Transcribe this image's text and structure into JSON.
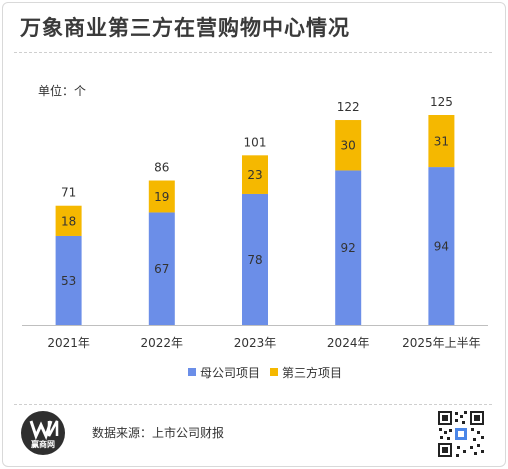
{
  "title": "万象商业第三方在营购物中心情况",
  "unit_label": "单位：个",
  "source_label": "数据来源：上市公司财报",
  "logo": {
    "text": "赢商网",
    "icon": "winshang-logo-icon"
  },
  "qr_icon": "qr-code-icon",
  "colors": {
    "parent": "#6b8ee8",
    "third_party": "#f5b800"
  },
  "chart_data": {
    "type": "bar",
    "stacked": true,
    "categories": [
      "2021年",
      "2022年",
      "2023年",
      "2024年",
      "2025年上半年"
    ],
    "series": [
      {
        "name": "母公司项目",
        "values": [
          53,
          67,
          78,
          92,
          94
        ]
      },
      {
        "name": "第三方项目",
        "values": [
          18,
          19,
          23,
          30,
          31
        ]
      }
    ],
    "totals": [
      71,
      86,
      101,
      122,
      125
    ],
    "legend_position": "bottom",
    "grid": false
  }
}
